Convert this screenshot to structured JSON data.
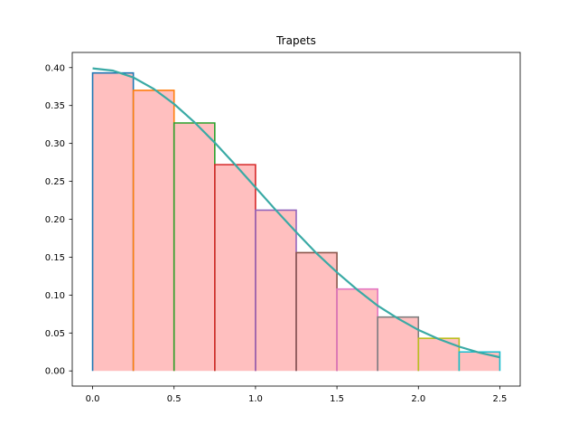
{
  "chart_data": {
    "type": "bar",
    "title": "Trapets",
    "xlabel": "",
    "ylabel": "",
    "xlim": [
      -0.125,
      2.625
    ],
    "ylim": [
      -0.02,
      0.42
    ],
    "x_ticks": [
      0.0,
      0.5,
      1.0,
      1.5,
      2.0,
      2.5
    ],
    "x_tick_labels": [
      "0.0",
      "0.5",
      "1.0",
      "1.5",
      "2.0",
      "2.5"
    ],
    "y_ticks": [
      0.0,
      0.05,
      0.1,
      0.15,
      0.2,
      0.25,
      0.3,
      0.35,
      0.4
    ],
    "y_tick_labels": [
      "0.00",
      "0.05",
      "0.10",
      "0.15",
      "0.20",
      "0.25",
      "0.30",
      "0.35",
      "0.40"
    ],
    "grid": false,
    "fill_color": "#ffbfbf",
    "bars": [
      {
        "x0": 0.0,
        "x1": 0.25,
        "height": 0.393,
        "color": "#1f77b4"
      },
      {
        "x0": 0.25,
        "x1": 0.5,
        "height": 0.37,
        "color": "#ff7f0e"
      },
      {
        "x0": 0.5,
        "x1": 0.75,
        "height": 0.327,
        "color": "#2ca02c"
      },
      {
        "x0": 0.75,
        "x1": 1.0,
        "height": 0.272,
        "color": "#d62728"
      },
      {
        "x0": 1.0,
        "x1": 1.25,
        "height": 0.212,
        "color": "#9467bd"
      },
      {
        "x0": 1.25,
        "x1": 1.5,
        "height": 0.156,
        "color": "#8c564b"
      },
      {
        "x0": 1.5,
        "x1": 1.75,
        "height": 0.108,
        "color": "#e377c2"
      },
      {
        "x0": 1.75,
        "x1": 2.0,
        "height": 0.071,
        "color": "#7f7f7f"
      },
      {
        "x0": 2.0,
        "x1": 2.25,
        "height": 0.043,
        "color": "#bcbd22"
      },
      {
        "x0": 2.25,
        "x1": 2.5,
        "height": 0.025,
        "color": "#17becf"
      }
    ],
    "curve": {
      "color": "#3aaaa5",
      "x": [
        0.0,
        0.125,
        0.25,
        0.375,
        0.5,
        0.625,
        0.75,
        0.875,
        1.0,
        1.125,
        1.25,
        1.375,
        1.5,
        1.625,
        1.75,
        1.875,
        2.0,
        2.125,
        2.25,
        2.375,
        2.5
      ],
      "y": [
        0.399,
        0.396,
        0.387,
        0.372,
        0.352,
        0.328,
        0.301,
        0.272,
        0.242,
        0.212,
        0.183,
        0.155,
        0.13,
        0.107,
        0.086,
        0.069,
        0.054,
        0.042,
        0.032,
        0.024,
        0.018
      ]
    }
  }
}
